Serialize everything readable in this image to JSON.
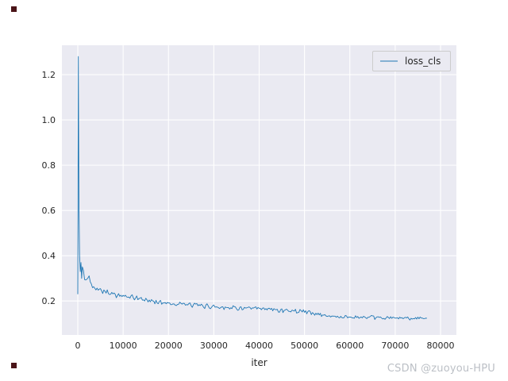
{
  "figure": {
    "background": "#ffffff",
    "plot_background": "#eaeaf2",
    "grid_color": "#ffffff",
    "tick_color": "#262626",
    "artifact_color": "#4a1418"
  },
  "legend": {
    "label": "loss_cls",
    "line_color": "#1f77b4"
  },
  "watermark": {
    "text": "CSDN @zuoyou-HPU",
    "color": "#bcc0c6"
  },
  "chart_data": {
    "type": "line",
    "title": "",
    "xlabel": "iter",
    "ylabel": "",
    "grid": true,
    "legend_position": "upper right",
    "xlim": [
      -3500,
      83500
    ],
    "ylim": [
      0.05,
      1.33
    ],
    "x_ticks": [
      0,
      10000,
      20000,
      30000,
      40000,
      50000,
      60000,
      70000,
      80000
    ],
    "y_ticks": [
      0.2,
      0.4,
      0.6,
      0.8,
      1.0,
      1.2
    ],
    "noise_amplitude": 0.045,
    "series": [
      {
        "name": "loss_cls",
        "color": "#1f77b4",
        "points": [
          [
            0,
            0.23
          ],
          [
            120,
            1.28
          ],
          [
            260,
            0.62
          ],
          [
            400,
            0.4
          ],
          [
            550,
            0.33
          ],
          [
            700,
            0.37
          ],
          [
            850,
            0.3
          ],
          [
            1000,
            0.35
          ],
          [
            1500,
            0.3
          ],
          [
            2000,
            0.29
          ],
          [
            2500,
            0.31
          ],
          [
            3000,
            0.27
          ],
          [
            4000,
            0.26
          ],
          [
            5000,
            0.25
          ],
          [
            6000,
            0.245
          ],
          [
            7000,
            0.235
          ],
          [
            8000,
            0.23
          ],
          [
            9000,
            0.225
          ],
          [
            10000,
            0.22
          ],
          [
            12000,
            0.215
          ],
          [
            14000,
            0.21
          ],
          [
            16000,
            0.2
          ],
          [
            18000,
            0.196
          ],
          [
            20000,
            0.19
          ],
          [
            22000,
            0.188
          ],
          [
            25000,
            0.182
          ],
          [
            28000,
            0.178
          ],
          [
            30000,
            0.175
          ],
          [
            33000,
            0.172
          ],
          [
            36000,
            0.168
          ],
          [
            40000,
            0.165
          ],
          [
            43000,
            0.162
          ],
          [
            46000,
            0.158
          ],
          [
            50000,
            0.155
          ],
          [
            52000,
            0.145
          ],
          [
            54000,
            0.138
          ],
          [
            56000,
            0.132
          ],
          [
            58000,
            0.13
          ],
          [
            60000,
            0.129
          ],
          [
            63000,
            0.127
          ],
          [
            66000,
            0.126
          ],
          [
            69000,
            0.125
          ],
          [
            72000,
            0.124
          ],
          [
            75000,
            0.125
          ],
          [
            77000,
            0.124
          ]
        ]
      }
    ]
  }
}
